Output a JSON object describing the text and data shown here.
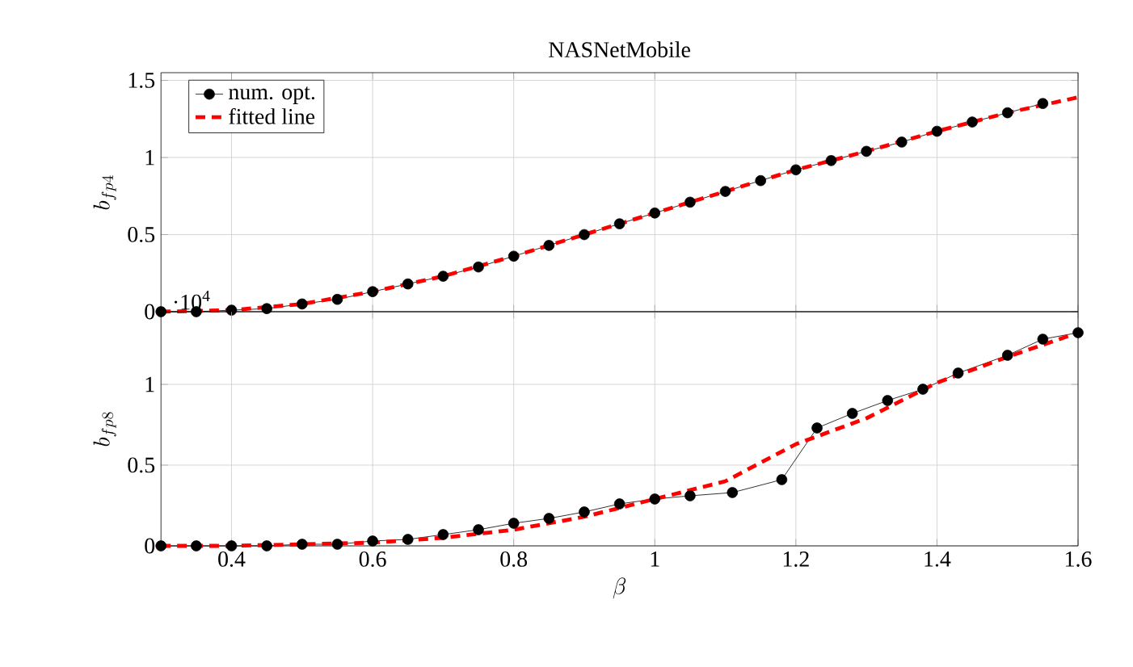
{
  "chart_data": [
    {
      "type": "line",
      "title": "NASNetMobile",
      "ylabel": "b_{fp4}",
      "xlim": [
        0.3,
        1.6
      ],
      "ylim": [
        0,
        1.55
      ],
      "xticks": [
        0.4,
        0.6,
        0.8,
        1,
        1.2,
        1.4,
        1.6
      ],
      "yticks": [
        0,
        0.5,
        1,
        1.5
      ],
      "grid": true,
      "legend": "top left",
      "tick_labels": "y",
      "series": [
        {
          "name": "num. opt.",
          "color": "#000000",
          "marker": "circle",
          "line_style": "solid",
          "x": [
            0.3,
            0.35,
            0.4,
            0.45,
            0.5,
            0.55,
            0.6,
            0.65,
            0.7,
            0.75,
            0.8,
            0.85,
            0.9,
            0.95,
            1.0,
            1.05,
            1.1,
            1.15,
            1.2,
            1.25,
            1.3,
            1.35,
            1.4,
            1.45,
            1.5,
            1.55
          ],
          "values": [
            0,
            0,
            0.01,
            0.02,
            0.05,
            0.08,
            0.13,
            0.18,
            0.23,
            0.29,
            0.36,
            0.43,
            0.5,
            0.57,
            0.64,
            0.71,
            0.78,
            0.85,
            0.92,
            0.98,
            1.04,
            1.1,
            1.17,
            1.23,
            1.29,
            1.35
          ]
        },
        {
          "name": "fitted line",
          "color": "#ff0000",
          "marker": "none",
          "line_style": "dashed",
          "x": [
            0.3,
            0.4,
            0.5,
            0.6,
            0.7,
            0.8,
            0.9,
            1.0,
            1.1,
            1.2,
            1.3,
            1.4,
            1.5,
            1.6
          ],
          "values": [
            0,
            0.01,
            0.05,
            0.13,
            0.23,
            0.36,
            0.5,
            0.64,
            0.78,
            0.92,
            1.04,
            1.17,
            1.29,
            1.39
          ]
        }
      ]
    },
    {
      "type": "line",
      "xlabel": "\\beta",
      "ylabel": "b_{fp8}",
      "annotations": [
        "·10$^{4}$"
      ],
      "xlim": [
        0.3,
        1.6
      ],
      "ylim": [
        0,
        1.45
      ],
      "xticks": [
        0.4,
        0.6,
        0.8,
        1,
        1.2,
        1.4,
        1.6
      ],
      "yticks": [
        0,
        0.5,
        1
      ],
      "grid": true,
      "series": [
        {
          "color": "#000000",
          "marker": "circle",
          "line_style": "solid",
          "x": [
            0.3,
            0.35,
            0.4,
            0.45,
            0.5,
            0.55,
            0.6,
            0.65,
            0.7,
            0.75,
            0.8,
            0.85,
            0.9,
            0.95,
            1.0,
            1.05,
            1.11,
            1.18,
            1.23,
            1.28,
            1.33,
            1.38,
            1.43,
            1.5,
            1.55,
            1.6
          ],
          "values": [
            0,
            0,
            0,
            0,
            0.01,
            0.01,
            0.03,
            0.04,
            0.07,
            0.1,
            0.14,
            0.17,
            0.21,
            0.26,
            0.29,
            0.31,
            0.33,
            0.41,
            0.73,
            0.82,
            0.9,
            0.97,
            1.07,
            1.18,
            1.28,
            1.32
          ]
        },
        {
          "color": "#ff0000",
          "marker": "none",
          "line_style": "dashed",
          "x": [
            0.3,
            0.4,
            0.5,
            0.6,
            0.7,
            0.8,
            0.9,
            1.0,
            1.1,
            1.2,
            1.3,
            1.4,
            1.5,
            1.6
          ],
          "values": [
            0,
            0,
            0.01,
            0.02,
            0.05,
            0.1,
            0.18,
            0.29,
            0.4,
            0.63,
            0.79,
            1.01,
            1.17,
            1.32
          ]
        }
      ]
    }
  ]
}
